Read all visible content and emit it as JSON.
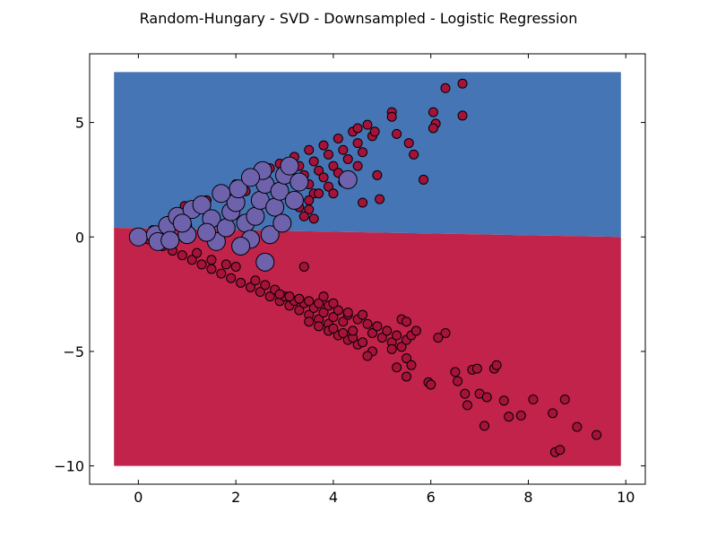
{
  "chart_data": {
    "type": "scatter",
    "title": "Random-Hungary - SVD - Downsampled - Logistic Regression",
    "xlabel": "",
    "ylabel": "",
    "xlim": [
      -1,
      10.4
    ],
    "ylim": [
      -10.8,
      8
    ],
    "x_ticks": [
      0,
      2,
      4,
      6,
      8,
      10
    ],
    "y_ticks": [
      -10,
      -5,
      0,
      5
    ],
    "y_tick_labels": [
      "−10",
      "−5",
      "0",
      "5"
    ],
    "grid": false,
    "legend": "none",
    "decision_regions": {
      "x_range": [
        -0.5,
        9.9
      ],
      "y_range": [
        -10.0,
        7.2
      ],
      "boundary": {
        "x": [
          -0.5,
          9.9
        ],
        "y": [
          0.4,
          0.0
        ]
      },
      "upper_class_color": "#4575b4",
      "lower_class_color": "#c1234a"
    },
    "series": [
      {
        "class": "minority",
        "color": "#6e62ad",
        "points": [
          [
            0.0,
            0.0
          ],
          [
            0.35,
            0.1
          ],
          [
            0.6,
            0.5
          ],
          [
            0.8,
            0.9
          ],
          [
            0.4,
            -0.2
          ],
          [
            0.65,
            -0.15
          ],
          [
            1.0,
            0.1
          ],
          [
            1.1,
            1.2
          ],
          [
            1.3,
            1.4
          ],
          [
            1.5,
            0.8
          ],
          [
            1.6,
            -0.2
          ],
          [
            1.8,
            0.4
          ],
          [
            1.9,
            1.1
          ],
          [
            2.0,
            1.5
          ],
          [
            2.05,
            2.1
          ],
          [
            2.2,
            0.6
          ],
          [
            2.3,
            -0.1
          ],
          [
            2.4,
            0.9
          ],
          [
            2.5,
            1.6
          ],
          [
            2.6,
            2.3
          ],
          [
            2.55,
            2.9
          ],
          [
            2.7,
            0.1
          ],
          [
            2.8,
            1.3
          ],
          [
            2.9,
            2.0
          ],
          [
            3.0,
            2.7
          ],
          [
            3.1,
            3.1
          ],
          [
            2.6,
            -1.1
          ],
          [
            2.1,
            -0.4
          ],
          [
            1.4,
            0.2
          ],
          [
            0.9,
            0.6
          ],
          [
            1.7,
            1.9
          ],
          [
            2.3,
            2.6
          ],
          [
            3.2,
            1.6
          ],
          [
            3.3,
            2.4
          ],
          [
            4.3,
            2.5
          ],
          [
            2.95,
            0.6
          ]
        ]
      },
      {
        "class": "majority",
        "color": "#a5133a",
        "points": [
          [
            0.0,
            0.0
          ],
          [
            0.2,
            -0.1
          ],
          [
            0.5,
            -0.4
          ],
          [
            0.7,
            -0.6
          ],
          [
            0.9,
            -0.8
          ],
          [
            1.1,
            -1.0
          ],
          [
            1.3,
            -1.2
          ],
          [
            1.5,
            -1.4
          ],
          [
            1.7,
            -1.6
          ],
          [
            1.9,
            -1.8
          ],
          [
            2.1,
            -2.0
          ],
          [
            2.3,
            -2.2
          ],
          [
            2.5,
            -2.4
          ],
          [
            2.7,
            -2.6
          ],
          [
            2.9,
            -2.8
          ],
          [
            3.1,
            -3.0
          ],
          [
            3.3,
            -3.2
          ],
          [
            3.5,
            -3.4
          ],
          [
            3.7,
            -3.6
          ],
          [
            3.9,
            -3.8
          ],
          [
            2.4,
            -1.9
          ],
          [
            2.6,
            -2.1
          ],
          [
            2.8,
            -2.3
          ],
          [
            3.0,
            -2.6
          ],
          [
            3.2,
            -2.8
          ],
          [
            3.4,
            -2.9
          ],
          [
            3.6,
            -3.1
          ],
          [
            3.8,
            -3.3
          ],
          [
            4.0,
            -3.5
          ],
          [
            4.2,
            -3.7
          ],
          [
            2.9,
            -2.5
          ],
          [
            3.1,
            -2.6
          ],
          [
            3.3,
            -2.7
          ],
          [
            3.5,
            -2.8
          ],
          [
            3.7,
            -2.9
          ],
          [
            3.9,
            -3.0
          ],
          [
            4.1,
            -3.2
          ],
          [
            4.3,
            -3.4
          ],
          [
            4.5,
            -3.6
          ],
          [
            4.7,
            -3.8
          ],
          [
            3.5,
            -3.7
          ],
          [
            3.7,
            -3.9
          ],
          [
            3.9,
            -4.1
          ],
          [
            4.1,
            -4.3
          ],
          [
            4.3,
            -4.5
          ],
          [
            4.5,
            -4.7
          ],
          [
            4.0,
            -4.0
          ],
          [
            4.2,
            -4.2
          ],
          [
            4.4,
            -4.4
          ],
          [
            4.6,
            -4.6
          ],
          [
            4.8,
            -4.2
          ],
          [
            5.0,
            -4.4
          ],
          [
            5.2,
            -4.6
          ],
          [
            5.4,
            -4.8
          ],
          [
            4.9,
            -3.9
          ],
          [
            5.1,
            -4.1
          ],
          [
            5.3,
            -4.3
          ],
          [
            5.5,
            -4.5
          ],
          [
            5.6,
            -4.3
          ],
          [
            5.7,
            -4.1
          ],
          [
            5.5,
            -5.3
          ],
          [
            5.6,
            -5.6
          ],
          [
            5.3,
            -5.7
          ],
          [
            5.5,
            -6.1
          ],
          [
            5.2,
            -4.9
          ],
          [
            4.8,
            -5.0
          ],
          [
            4.7,
            -5.2
          ],
          [
            4.4,
            -4.1
          ],
          [
            4.6,
            -3.4
          ],
          [
            4.3,
            -3.3
          ],
          [
            4.0,
            -2.9
          ],
          [
            3.8,
            -2.6
          ],
          [
            3.4,
            -1.3
          ],
          [
            5.4,
            -3.6
          ],
          [
            5.5,
            -3.7
          ],
          [
            6.3,
            -4.2
          ],
          [
            6.15,
            -4.4
          ],
          [
            6.5,
            -5.9
          ],
          [
            6.55,
            -6.3
          ],
          [
            6.85,
            -5.8
          ],
          [
            6.95,
            -5.75
          ],
          [
            6.7,
            -6.85
          ],
          [
            6.75,
            -7.35
          ],
          [
            7.0,
            -6.85
          ],
          [
            7.15,
            -7.0
          ],
          [
            7.1,
            -8.25
          ],
          [
            7.3,
            -5.75
          ],
          [
            7.35,
            -5.6
          ],
          [
            7.5,
            -7.15
          ],
          [
            7.6,
            -7.85
          ],
          [
            7.85,
            -7.8
          ],
          [
            8.1,
            -7.1
          ],
          [
            8.5,
            -7.7
          ],
          [
            8.75,
            -7.1
          ],
          [
            8.55,
            -9.4
          ],
          [
            8.65,
            -9.3
          ],
          [
            9.0,
            -8.3
          ],
          [
            9.4,
            -8.65
          ],
          [
            5.95,
            -6.35
          ],
          [
            6.0,
            -6.45
          ],
          [
            0.3,
            0.3
          ],
          [
            0.6,
            0.7
          ],
          [
            0.8,
            1.0
          ],
          [
            1.1,
            1.3
          ],
          [
            1.4,
            1.6
          ],
          [
            1.7,
            1.9
          ],
          [
            2.0,
            2.3
          ],
          [
            2.3,
            2.6
          ],
          [
            2.6,
            2.9
          ],
          [
            2.9,
            3.2
          ],
          [
            3.2,
            3.5
          ],
          [
            3.5,
            3.8
          ],
          [
            3.8,
            4.0
          ],
          [
            4.1,
            4.3
          ],
          [
            4.4,
            4.6
          ],
          [
            4.7,
            4.9
          ],
          [
            3.3,
            3.1
          ],
          [
            3.6,
            3.3
          ],
          [
            3.9,
            3.6
          ],
          [
            4.2,
            3.8
          ],
          [
            4.5,
            4.1
          ],
          [
            4.8,
            4.4
          ],
          [
            3.4,
            2.7
          ],
          [
            3.7,
            2.9
          ],
          [
            4.0,
            3.1
          ],
          [
            4.3,
            3.4
          ],
          [
            4.6,
            3.7
          ],
          [
            3.5,
            2.3
          ],
          [
            3.8,
            2.6
          ],
          [
            4.1,
            2.8
          ],
          [
            3.6,
            1.9
          ],
          [
            3.9,
            2.2
          ],
          [
            4.2,
            2.4
          ],
          [
            3.3,
            1.3
          ],
          [
            3.5,
            1.6
          ],
          [
            3.7,
            1.9
          ],
          [
            3.5,
            1.2
          ],
          [
            3.6,
            0.8
          ],
          [
            3.4,
            0.9
          ],
          [
            4.0,
            1.9
          ],
          [
            4.6,
            1.5
          ],
          [
            4.9,
            2.7
          ],
          [
            4.5,
            3.1
          ],
          [
            4.95,
            1.65
          ],
          [
            5.2,
            5.45
          ],
          [
            5.2,
            5.25
          ],
          [
            5.3,
            4.5
          ],
          [
            5.55,
            4.1
          ],
          [
            5.65,
            3.6
          ],
          [
            5.85,
            2.5
          ],
          [
            4.85,
            4.6
          ],
          [
            4.5,
            4.75
          ],
          [
            6.05,
            5.45
          ],
          [
            6.1,
            4.95
          ],
          [
            6.05,
            4.75
          ],
          [
            6.3,
            6.5
          ],
          [
            6.65,
            6.7
          ],
          [
            6.65,
            5.3
          ],
          [
            2.2,
            2.0
          ],
          [
            1.0,
            0.5
          ],
          [
            1.2,
            -0.7
          ],
          [
            1.5,
            -1.0
          ],
          [
            1.8,
            -1.2
          ],
          [
            2.0,
            -1.3
          ],
          [
            0.95,
            1.35
          ],
          [
            1.35,
            1.5
          ],
          [
            2.7,
            3.0
          ]
        ]
      }
    ]
  }
}
